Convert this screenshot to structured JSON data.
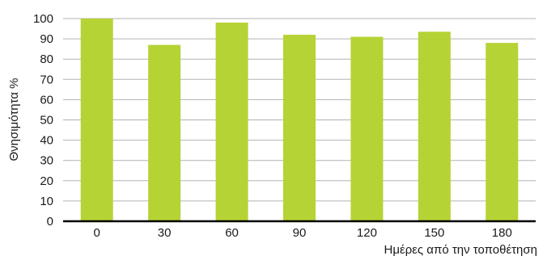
{
  "chart_data": {
    "type": "bar",
    "categories": [
      "0",
      "30",
      "60",
      "90",
      "120",
      "150",
      "180"
    ],
    "values": [
      100,
      87,
      98,
      92,
      91,
      93.5,
      88
    ],
    "title": "",
    "xlabel": "Ημέρες από την τοποθέτηση",
    "ylabel": "Θνησιμότητα %",
    "ylim": [
      0,
      100
    ],
    "yticks": [
      "0",
      "10",
      "20",
      "30",
      "40",
      "50",
      "60",
      "70",
      "80",
      "90",
      "100"
    ],
    "grid": "horizontal",
    "bar_color": "#b5d334",
    "grid_color": "#b3b3b3",
    "axis_color": "#000000"
  }
}
